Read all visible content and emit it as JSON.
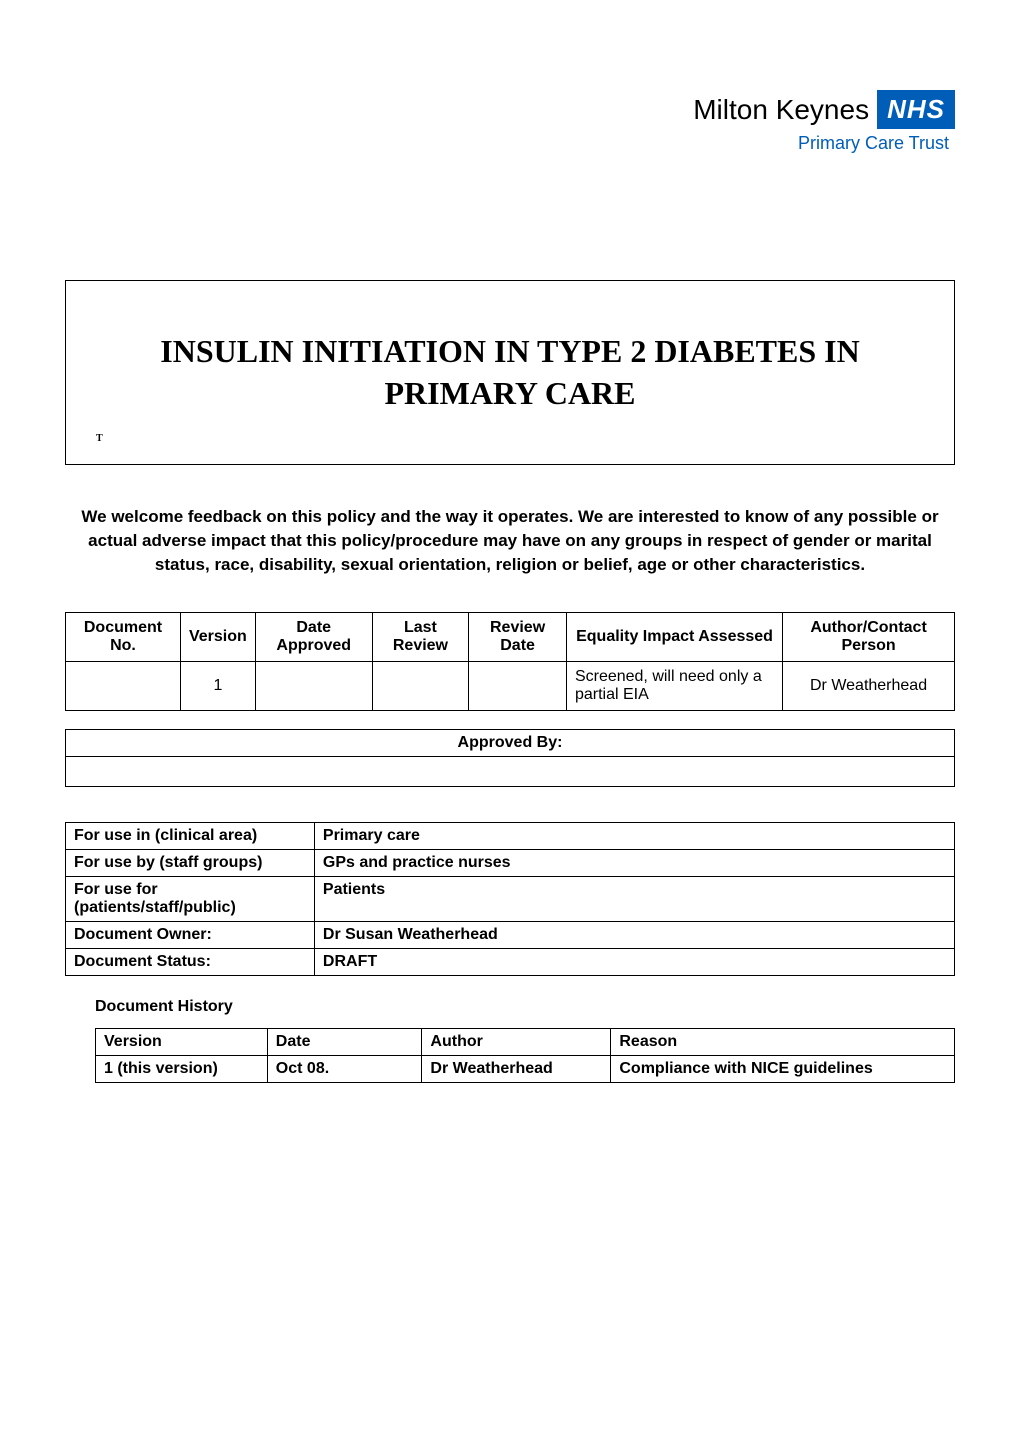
{
  "logo": {
    "main_text": "Milton Keynes",
    "badge_text": "NHS",
    "subtitle": "Primary Care Trust",
    "badge_bg_color": "#005EB8",
    "badge_text_color": "#ffffff",
    "subtitle_color": "#005EB8"
  },
  "title": {
    "main": "INSULIN INITIATION IN TYPE 2 DIABETES IN PRIMARY CARE",
    "sub": "T"
  },
  "welcome_text": "We welcome feedback on this policy and the way it operates.  We are interested to know of any possible or actual adverse impact that this policy/procedure may have on any groups in respect of gender or marital status, race, disability, sexual orientation, religion or belief, age or other characteristics.",
  "doc_info": {
    "headers": [
      "Document No.",
      "Version",
      "Date Approved",
      "Last Review",
      "Review Date",
      "Equality Impact Assessed",
      "Author/Contact Person"
    ],
    "row": {
      "document_no": "",
      "version": "1",
      "date_approved": "",
      "last_review": "",
      "review_date": "",
      "equality_impact": "Screened, will need only a partial EIA",
      "author_contact": "Dr Weatherhead"
    }
  },
  "approved": {
    "header": "Approved By:",
    "value": ""
  },
  "usage": {
    "rows": [
      {
        "label": "For use in (clinical area)",
        "value": "Primary care"
      },
      {
        "label": "For use by (staff groups)",
        "value": "GPs and practice nurses"
      },
      {
        "label": "For use for (patients/staff/public)",
        "value": "Patients"
      },
      {
        "label": "Document Owner:",
        "value": "Dr Susan Weatherhead"
      },
      {
        "label": "Document Status:",
        "value": "DRAFT"
      }
    ]
  },
  "history": {
    "heading": "Document History",
    "headers": [
      "Version",
      "Date",
      "Author",
      "Reason"
    ],
    "row": {
      "version": "1 (this version)",
      "date": "Oct 08.",
      "author": "Dr Weatherhead",
      "reason": "Compliance with NICE guidelines"
    }
  },
  "colors": {
    "page_bg": "#ffffff",
    "text": "#000000",
    "border": "#000000"
  },
  "typography": {
    "body_font": "Arial",
    "title_font": "Times New Roman",
    "title_fontsize": 32,
    "body_fontsize": 16,
    "welcome_fontsize": 17
  }
}
